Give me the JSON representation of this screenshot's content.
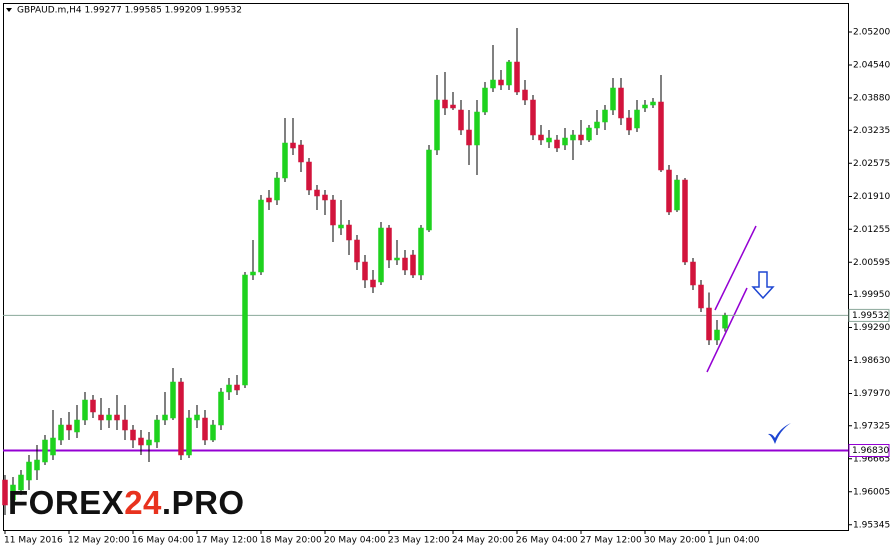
{
  "chart_data": {
    "type": "candlestick",
    "title": "GBPAUD.m,H4  1.99277 1.99585 1.99209 1.99532",
    "watermark": [
      "FOREX",
      "24",
      ".PRO"
    ],
    "up_color": "#1ed21e",
    "down_color": "#d2143c",
    "categories": [
      "11 May 2016",
      null,
      null,
      null,
      null,
      null,
      null,
      null,
      "12 May 20:00",
      null,
      null,
      null,
      null,
      null,
      null,
      null,
      "16 May 04:00",
      null,
      null,
      null,
      null,
      null,
      null,
      null,
      "17 May 12:00",
      null,
      null,
      null,
      null,
      null,
      null,
      null,
      "18 May 20:00",
      null,
      null,
      null,
      null,
      null,
      null,
      null,
      "20 May 04:00",
      null,
      null,
      null,
      null,
      null,
      null,
      null,
      "23 May 12:00",
      null,
      null,
      null,
      null,
      null,
      null,
      null,
      "24 May 20:00",
      null,
      null,
      null,
      null,
      null,
      null,
      null,
      "26 May 04:00",
      null,
      null,
      null,
      null,
      null,
      null,
      null,
      "27 May 12:00",
      null,
      null,
      null,
      null,
      null,
      null,
      null,
      "30 May 20:00",
      null,
      null,
      null,
      null,
      null,
      null,
      null,
      "1 Jun 04:00",
      null,
      null
    ],
    "open": [
      1.9624,
      1.9584,
      1.9604,
      1.9624,
      1.9644,
      1.966,
      1.9674,
      1.9704,
      1.9734,
      1.972,
      1.9744,
      1.9784,
      1.9754,
      1.9744,
      1.9754,
      1.9744,
      1.9724,
      1.9708,
      1.9694,
      1.97,
      1.9744,
      1.9748,
      1.982,
      1.9674,
      1.9744,
      1.9748,
      1.9704,
      1.9734,
      1.98,
      1.9814,
      1.9814,
      2.0034,
      2.004,
      2.0188,
      2.0184,
      2.0228,
      2.0298,
      2.0294,
      2.026,
      2.0204,
      2.0194,
      2.0184,
      2.0128,
      2.0134,
      2.0104,
      2.006,
      2.0024,
      2.002,
      2.0128,
      2.0064,
      2.0068,
      2.0074,
      2.0034,
      2.0124,
      2.0284,
      2.0384,
      2.0374,
      2.0364,
      2.0324,
      2.0294,
      2.036,
      2.0408,
      2.0424,
      2.0414,
      2.046,
      2.0404,
      2.0384,
      2.0314,
      2.03,
      2.0304,
      2.0294,
      2.0304,
      2.0314,
      2.0304,
      2.0328,
      2.034,
      2.0364,
      2.0408,
      2.0348,
      2.0328,
      2.0368,
      2.0374,
      2.038,
      2.0244,
      2.0164,
      2.0224,
      2.006,
      2.0014,
      1.9968,
      1.9904,
      1.99277
    ],
    "high": [
      1.9634,
      1.963,
      1.9644,
      1.9674,
      1.9694,
      1.9714,
      1.9764,
      1.9748,
      1.976,
      1.9774,
      1.98,
      1.9794,
      1.9788,
      1.9768,
      1.9794,
      1.9774,
      1.9734,
      1.9724,
      1.972,
      1.9754,
      1.98,
      1.9848,
      1.9828,
      1.9764,
      1.9774,
      1.9764,
      1.9744,
      1.9808,
      1.9828,
      1.9834,
      2.004,
      2.0104,
      2.0194,
      2.0204,
      2.024,
      2.0348,
      2.0348,
      2.0304,
      2.0268,
      2.0214,
      2.0204,
      2.0194,
      2.0184,
      2.0144,
      2.0114,
      2.0074,
      2.0044,
      2.014,
      2.0134,
      2.0104,
      2.0084,
      2.0084,
      2.0134,
      2.0294,
      2.0434,
      2.044,
      2.04,
      2.0384,
      2.0364,
      2.0384,
      2.042,
      2.0494,
      2.0444,
      2.0464,
      2.0528,
      2.0424,
      2.0394,
      2.0334,
      2.0324,
      2.0314,
      2.0328,
      2.0324,
      2.0344,
      2.0334,
      2.0364,
      2.0374,
      2.0428,
      2.0428,
      2.0364,
      2.0384,
      2.0384,
      2.0388,
      2.0434,
      2.0254,
      2.0234,
      2.0228,
      2.0068,
      2.0024,
      1.9999,
      1.9944,
      1.99585
    ],
    "low": [
      1.9554,
      1.9574,
      1.9594,
      1.9604,
      1.9624,
      1.9654,
      1.9664,
      1.9694,
      1.9704,
      1.9708,
      1.9734,
      1.9748,
      1.9724,
      1.9728,
      1.9724,
      1.9704,
      1.9688,
      1.9674,
      1.966,
      1.9688,
      1.9734,
      1.9744,
      1.9664,
      1.9668,
      1.9728,
      1.9694,
      1.97,
      1.9724,
      1.9784,
      1.9794,
      1.9808,
      2.0024,
      2.0034,
      2.0164,
      2.0174,
      2.022,
      2.0274,
      2.024,
      2.0194,
      2.0164,
      2.0154,
      2.01,
      2.0114,
      2.0074,
      2.0044,
      2.0008,
      1.9998,
      2.0014,
      2.0048,
      2.0054,
      2.0034,
      2.0028,
      2.0024,
      2.012,
      2.0274,
      2.0354,
      2.0364,
      2.0314,
      2.0254,
      2.0234,
      2.0354,
      2.04,
      2.0404,
      2.0404,
      2.0394,
      2.0374,
      2.0304,
      2.0294,
      2.0288,
      2.028,
      2.0284,
      2.0264,
      2.0294,
      2.03,
      2.0314,
      2.0324,
      2.0354,
      2.0334,
      2.0314,
      2.032,
      2.036,
      2.0368,
      2.024,
      2.0154,
      2.016,
      2.0054,
      2.0004,
      1.996,
      1.9894,
      1.9894,
      1.99209
    ],
    "close": [
      1.9574,
      1.9614,
      1.9634,
      1.966,
      1.9664,
      1.9704,
      1.9708,
      1.9734,
      1.9724,
      1.9744,
      1.9784,
      1.976,
      1.9744,
      1.9754,
      1.9744,
      1.9724,
      1.9704,
      1.9694,
      1.9704,
      1.9744,
      1.9754,
      1.982,
      1.9674,
      1.9748,
      1.9754,
      1.9704,
      1.9734,
      1.98,
      1.9814,
      1.9804,
      2.0034,
      2.004,
      2.0184,
      2.018,
      2.0228,
      2.0298,
      2.0288,
      2.026,
      2.0204,
      2.0192,
      2.0184,
      2.0134,
      2.0134,
      2.0104,
      2.006,
      2.0024,
      2.001,
      2.0128,
      2.0064,
      2.0068,
      2.0044,
      2.0034,
      2.0128,
      2.0284,
      2.0384,
      2.0368,
      2.0368,
      2.0324,
      2.0294,
      2.036,
      2.0408,
      2.0424,
      2.0414,
      2.046,
      2.04,
      2.0384,
      2.0314,
      2.0304,
      2.0308,
      2.0288,
      2.0308,
      2.0314,
      2.0304,
      2.0328,
      2.034,
      2.0364,
      2.0408,
      2.0348,
      2.0324,
      2.0364,
      2.0374,
      2.038,
      2.0244,
      2.016,
      2.0224,
      2.006,
      2.0014,
      1.9968,
      1.9904,
      1.9924,
      1.99532
    ],
    "ylim": [
      1.9524,
      2.0578
    ],
    "yticks": [
      {
        "value": 2.052,
        "label": "2.05200"
      },
      {
        "value": 2.0454,
        "label": "2.04540"
      },
      {
        "value": 2.0388,
        "label": "2.03880"
      },
      {
        "value": 2.03235,
        "label": "2.03235"
      },
      {
        "value": 2.02575,
        "label": "2.02575"
      },
      {
        "value": 2.0191,
        "label": "2.01910"
      },
      {
        "value": 2.01255,
        "label": "2.01255"
      },
      {
        "value": 2.00595,
        "label": "2.00595"
      },
      {
        "value": 1.9995,
        "label": "1.99950"
      },
      {
        "value": 1.9929,
        "label": "1.99290"
      },
      {
        "value": 1.9863,
        "label": "1.98630"
      },
      {
        "value": 1.9797,
        "label": "1.97970"
      },
      {
        "value": 1.97325,
        "label": "1.97325"
      },
      {
        "value": 1.96665,
        "label": "1.96665"
      },
      {
        "value": 1.96005,
        "label": "1.96005"
      },
      {
        "value": 1.95345,
        "label": "1.95345"
      }
    ],
    "hlines": [
      {
        "value": 1.99532,
        "label": "1.99532",
        "color": "#8aa89a"
      },
      {
        "value": 1.9683,
        "label": "1.96830",
        "color": "#9400d3"
      }
    ]
  }
}
